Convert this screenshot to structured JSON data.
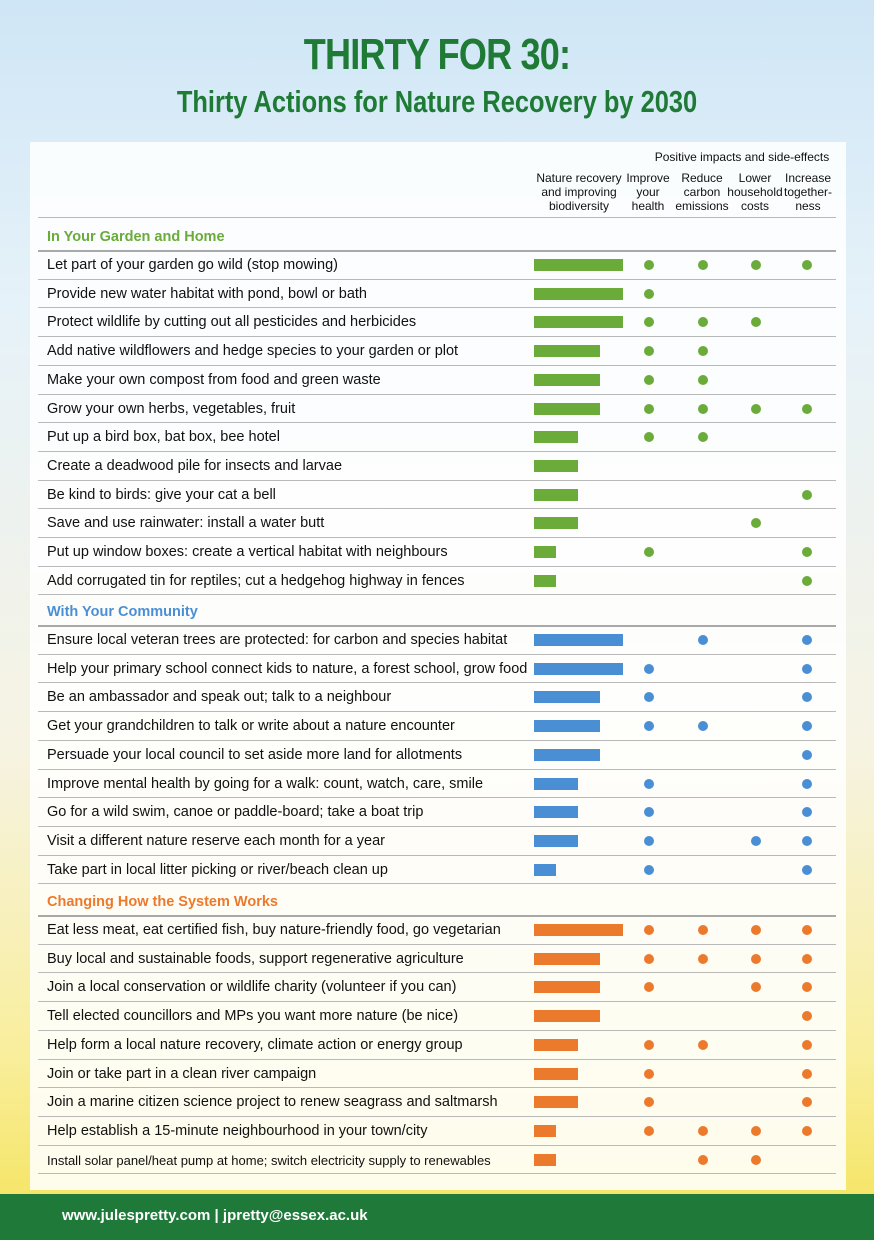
{
  "title": "THIRTY FOR 30:",
  "subtitle": "Thirty Actions for Nature Recovery by 2030",
  "header": {
    "group_label": "Positive impacts and side-effects",
    "columns": [
      [
        "Nature recovery",
        "and improving",
        "biodiversity"
      ],
      [
        "Improve",
        "your",
        "health"
      ],
      [
        "Reduce",
        "carbon",
        "emissions"
      ],
      [
        "Lower",
        "household",
        "costs"
      ],
      [
        "Increase",
        "together-",
        "ness"
      ]
    ]
  },
  "colors": {
    "garden": "#6aab3a",
    "community": "#4a8fd4",
    "system": "#ec7a2d",
    "title": "#1e7a34",
    "footer": "#1f7a3a"
  },
  "sections": [
    {
      "title": "In Your Garden and Home",
      "color_key": "garden",
      "rows": [
        {
          "label": "Let part of your garden go wild (stop mowing)",
          "level": 4,
          "dots": [
            1,
            1,
            1,
            1
          ]
        },
        {
          "label": "Provide new water habitat with pond, bowl or bath",
          "level": 4,
          "dots": [
            1,
            0,
            0,
            0
          ]
        },
        {
          "label": "Protect wildlife by cutting out all pesticides and herbicides",
          "level": 4,
          "dots": [
            1,
            1,
            1,
            0
          ]
        },
        {
          "label": "Add native wildflowers and hedge species to your garden or plot",
          "level": 3,
          "dots": [
            1,
            1,
            0,
            0
          ]
        },
        {
          "label": "Make your own compost from food and green waste",
          "level": 3,
          "dots": [
            1,
            1,
            0,
            0
          ]
        },
        {
          "label": "Grow your own herbs, vegetables, fruit",
          "level": 3,
          "dots": [
            1,
            1,
            1,
            1
          ]
        },
        {
          "label": "Put up a bird box, bat box, bee hotel",
          "level": 2,
          "dots": [
            1,
            1,
            0,
            0
          ]
        },
        {
          "label": "Create a deadwood pile for insects and larvae",
          "level": 2,
          "dots": [
            0,
            0,
            0,
            0
          ]
        },
        {
          "label": "Be kind to birds: give your cat a bell",
          "level": 2,
          "dots": [
            0,
            0,
            0,
            1
          ]
        },
        {
          "label": "Save and use rainwater: install a water butt",
          "level": 2,
          "dots": [
            0,
            0,
            1,
            0
          ]
        },
        {
          "label": "Put up window boxes: create a vertical habitat with neighbours",
          "level": 1,
          "dots": [
            1,
            0,
            0,
            1
          ]
        },
        {
          "label": "Add corrugated tin for reptiles; cut a hedgehog highway in fences",
          "level": 1,
          "dots": [
            0,
            0,
            0,
            1
          ]
        }
      ]
    },
    {
      "title": "With Your Community",
      "color_key": "community",
      "rows": [
        {
          "label": "Ensure local veteran trees are protected: for carbon and species habitat",
          "level": 4,
          "dots": [
            0,
            1,
            0,
            1
          ]
        },
        {
          "label": "Help your primary school connect kids to nature, a forest school, grow food",
          "level": 4,
          "dots": [
            1,
            0,
            0,
            1
          ]
        },
        {
          "label": "Be an ambassador and speak out; talk to a neighbour",
          "level": 3,
          "dots": [
            1,
            0,
            0,
            1
          ]
        },
        {
          "label": "Get your grandchildren to talk or write about a nature encounter",
          "level": 3,
          "dots": [
            1,
            1,
            0,
            1
          ]
        },
        {
          "label": "Persuade your local council to set aside more land for allotments",
          "level": 3,
          "dots": [
            0,
            0,
            0,
            1
          ]
        },
        {
          "label": "Improve mental health by going for a walk: count, watch, care, smile",
          "level": 2,
          "dots": [
            1,
            0,
            0,
            1
          ]
        },
        {
          "label": "Go for a wild swim, canoe or paddle-board; take a boat trip",
          "level": 2,
          "dots": [
            1,
            0,
            0,
            1
          ]
        },
        {
          "label": "Visit a different nature reserve each month for a year",
          "level": 2,
          "dots": [
            1,
            0,
            1,
            1
          ]
        },
        {
          "label": "Take part in local litter picking or river/beach clean up",
          "level": 1,
          "dots": [
            1,
            0,
            0,
            1
          ]
        }
      ]
    },
    {
      "title": "Changing How the System Works",
      "color_key": "system",
      "rows": [
        {
          "label": "Eat less meat, eat certified fish, buy nature-friendly food, go vegetarian",
          "level": 4,
          "dots": [
            1,
            1,
            1,
            1
          ]
        },
        {
          "label": "Buy local and sustainable foods, support regenerative agriculture",
          "level": 3,
          "dots": [
            1,
            1,
            1,
            1
          ]
        },
        {
          "label": "Join a local conservation or wildlife charity (volunteer if you can)",
          "level": 3,
          "dots": [
            1,
            0,
            1,
            1
          ]
        },
        {
          "label": "Tell elected councillors and MPs you want more nature (be nice)",
          "level": 3,
          "dots": [
            0,
            0,
            0,
            1
          ]
        },
        {
          "label": "Help form a local nature recovery, climate action or energy group",
          "level": 2,
          "dots": [
            1,
            1,
            0,
            1
          ]
        },
        {
          "label": "Join or take part in a clean river campaign",
          "level": 2,
          "dots": [
            1,
            0,
            0,
            1
          ]
        },
        {
          "label": "Join a marine citizen science project to renew seagrass and saltmarsh",
          "level": 2,
          "dots": [
            1,
            0,
            0,
            1
          ]
        },
        {
          "label": "Help establish a 15-minute neighbourhood in your town/city",
          "level": 1,
          "dots": [
            1,
            1,
            1,
            1
          ]
        },
        {
          "label": "Install solar panel/heat pump at home; switch electricity supply to renewables",
          "level": 1,
          "dots": [
            0,
            1,
            1,
            0
          ],
          "small": true
        }
      ]
    }
  ],
  "footer": {
    "text": "www.julespretty.com   |   jpretty@essex.ac.uk"
  }
}
